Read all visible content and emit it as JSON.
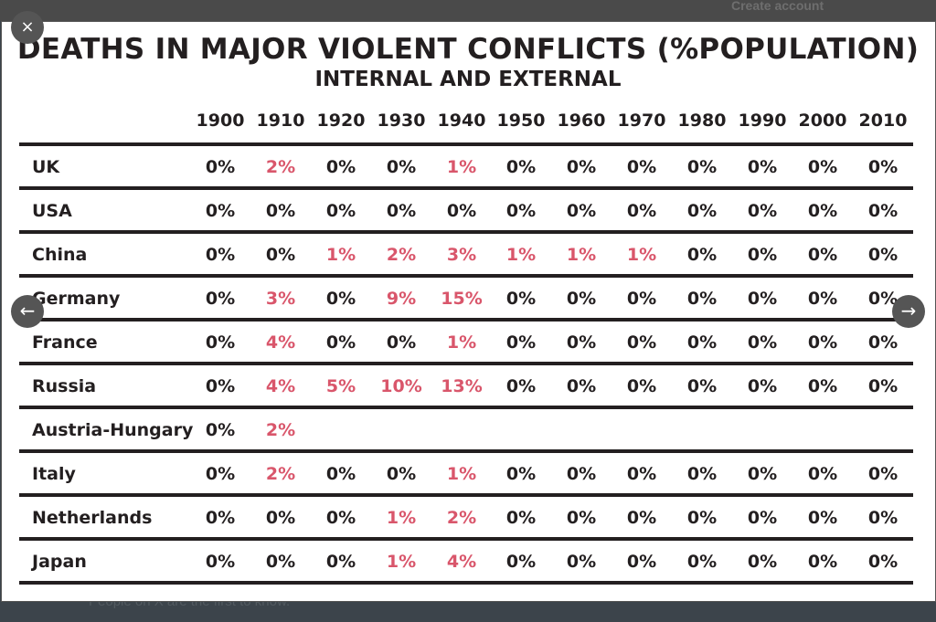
{
  "background": {
    "create_account": "Create account",
    "tagline": "People on X are the first to know."
  },
  "lightbox": {
    "close_icon": "×",
    "prev_icon": "←",
    "next_icon": "→"
  },
  "table": {
    "title": "DEATHS IN MAJOR VIOLENT CONFLICTS (%POPULATION)",
    "subtitle": "INTERNAL AND EXTERNAL",
    "highlight_color": "#d9566b",
    "years": [
      "1900",
      "1910",
      "1920",
      "1930",
      "1940",
      "1950",
      "1960",
      "1970",
      "1980",
      "1990",
      "2000",
      "2010"
    ],
    "rows": [
      {
        "country": "UK",
        "values": [
          "0%",
          "2%",
          "0%",
          "0%",
          "1%",
          "0%",
          "0%",
          "0%",
          "0%",
          "0%",
          "0%",
          "0%"
        ]
      },
      {
        "country": "USA",
        "values": [
          "0%",
          "0%",
          "0%",
          "0%",
          "0%",
          "0%",
          "0%",
          "0%",
          "0%",
          "0%",
          "0%",
          "0%"
        ]
      },
      {
        "country": "China",
        "values": [
          "0%",
          "0%",
          "1%",
          "2%",
          "3%",
          "1%",
          "1%",
          "1%",
          "0%",
          "0%",
          "0%",
          "0%"
        ]
      },
      {
        "country": "Germany",
        "values": [
          "0%",
          "3%",
          "0%",
          "9%",
          "15%",
          "0%",
          "0%",
          "0%",
          "0%",
          "0%",
          "0%",
          "0%"
        ]
      },
      {
        "country": "France",
        "values": [
          "0%",
          "4%",
          "0%",
          "0%",
          "1%",
          "0%",
          "0%",
          "0%",
          "0%",
          "0%",
          "0%",
          "0%"
        ]
      },
      {
        "country": "Russia",
        "values": [
          "0%",
          "4%",
          "5%",
          "10%",
          "13%",
          "0%",
          "0%",
          "0%",
          "0%",
          "0%",
          "0%",
          "0%"
        ]
      },
      {
        "country": "Austria-Hungary",
        "values": [
          "0%",
          "2%"
        ]
      },
      {
        "country": "Italy",
        "values": [
          "0%",
          "2%",
          "0%",
          "0%",
          "1%",
          "0%",
          "0%",
          "0%",
          "0%",
          "0%",
          "0%",
          "0%"
        ]
      },
      {
        "country": "Netherlands",
        "values": [
          "0%",
          "0%",
          "0%",
          "1%",
          "2%",
          "0%",
          "0%",
          "0%",
          "0%",
          "0%",
          "0%",
          "0%"
        ]
      },
      {
        "country": "Japan",
        "values": [
          "0%",
          "0%",
          "0%",
          "1%",
          "4%",
          "0%",
          "0%",
          "0%",
          "0%",
          "0%",
          "0%",
          "0%"
        ]
      }
    ]
  }
}
